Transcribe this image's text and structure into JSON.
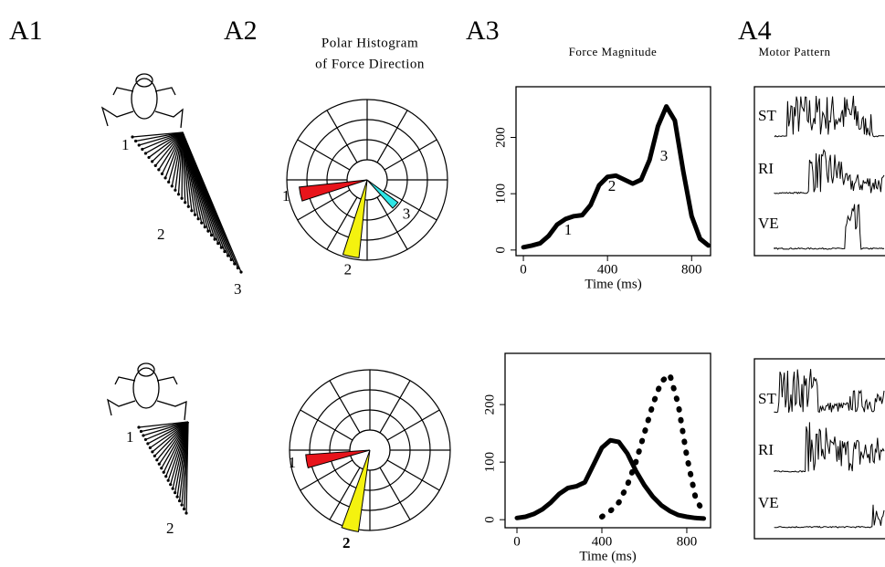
{
  "panel_labels": [
    "A1",
    "A2",
    "A3",
    "A4"
  ],
  "titles": {
    "polar": [
      "Polar Histogram",
      "of Force Direction"
    ],
    "force": "Force Magnitude",
    "motor": "Motor Pattern"
  },
  "a1_labels": {
    "top": [
      "1",
      "2",
      "3"
    ],
    "bottom": [
      "1",
      "2"
    ]
  },
  "motor_labels": {
    "top": [
      "ST",
      "RI",
      "VE"
    ],
    "bottom": [
      "ST",
      "RI",
      "VE"
    ]
  },
  "chart_data": [
    {
      "type": "polar",
      "angles": [
        192,
        258,
        318
      ],
      "values": [
        3.4,
        3.9,
        1.9
      ],
      "colors": [
        "#e8141b",
        "#f4f20f",
        "#2ee6e6"
      ],
      "rlim": [
        0,
        4
      ],
      "labels": [
        "1",
        "2",
        "3"
      ]
    },
    {
      "type": "polar",
      "angles": [
        190,
        256
      ],
      "values": [
        3.2,
        4.1
      ],
      "colors": [
        "#e8141b",
        "#f4f20f"
      ],
      "rlim": [
        0,
        4
      ],
      "labels": [
        "1",
        "2"
      ]
    },
    {
      "type": "line",
      "x": [
        0,
        40,
        80,
        120,
        160,
        200,
        240,
        280,
        320,
        360,
        400,
        440,
        480,
        520,
        560,
        600,
        640,
        680,
        720,
        760,
        800,
        840,
        880
      ],
      "series": [
        {
          "color": "#000000",
          "style": "solid",
          "values": [
            5,
            8,
            12,
            25,
            45,
            55,
            60,
            62,
            80,
            115,
            130,
            132,
            125,
            118,
            125,
            160,
            220,
            255,
            230,
            140,
            60,
            20,
            8
          ]
        }
      ],
      "xlim": [
        -35,
        890
      ],
      "ylim": [
        -10,
        290
      ],
      "xticks": [
        0,
        400,
        800
      ],
      "yticks": [
        0,
        100,
        200
      ],
      "xlabel": "Time (ms)",
      "annotations": [
        "1",
        "2",
        "3"
      ]
    },
    {
      "type": "line",
      "x": [
        0,
        40,
        80,
        120,
        160,
        200,
        240,
        280,
        320,
        360,
        400,
        440,
        480,
        520,
        560,
        600,
        640,
        680,
        720,
        760,
        800,
        840,
        880
      ],
      "series": [
        {
          "color": "#000000",
          "style": "solid",
          "values": [
            3,
            5,
            10,
            18,
            30,
            45,
            55,
            58,
            65,
            95,
            125,
            138,
            135,
            115,
            85,
            60,
            40,
            25,
            15,
            8,
            5,
            3,
            2
          ]
        },
        {
          "color": "#000000",
          "style": "dotted",
          "values": [
            null,
            null,
            null,
            null,
            null,
            null,
            null,
            null,
            null,
            null,
            5,
            15,
            30,
            60,
            100,
            150,
            200,
            240,
            252,
            200,
            110,
            40,
            10
          ]
        }
      ],
      "xlim": [
        -56,
        912
      ],
      "ylim": [
        -14,
        289
      ],
      "xticks": [
        0,
        400,
        800
      ],
      "yticks": [
        0,
        100,
        200
      ],
      "xlabel": "Time (ms)",
      "annotations": []
    }
  ]
}
